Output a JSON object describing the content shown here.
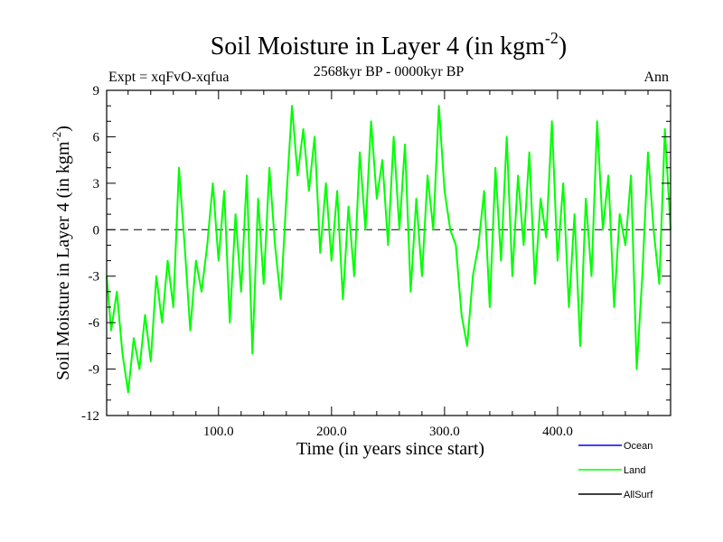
{
  "chart_data": {
    "type": "line",
    "title": "Soil Moisture in Layer 4 (in kgm",
    "title_sup": "-2",
    "title_close": ")",
    "subtitle": "2568kyr BP - 0000kyr BP",
    "expt_label": "Expt = xqFvO-xqfua",
    "season_label": "Ann",
    "ylabel": "Soil Moisture in Layer 4 (in kgm",
    "ylabel_sup": "-2",
    "ylabel_close": ")",
    "xlabel": "Time (in years since start)",
    "xlim": [
      1,
      500
    ],
    "ylim": [
      -12,
      9
    ],
    "x_ticks": [
      {
        "value": 100,
        "label": "100.0"
      },
      {
        "value": 200,
        "label": "200.0"
      },
      {
        "value": 300,
        "label": "300.0"
      },
      {
        "value": 400,
        "label": "400.0"
      }
    ],
    "y_ticks": [
      {
        "value": 9,
        "label": "9"
      },
      {
        "value": 6,
        "label": "6"
      },
      {
        "value": 3,
        "label": "3"
      },
      {
        "value": 0,
        "label": "0"
      },
      {
        "value": -3,
        "label": "-3"
      },
      {
        "value": -6,
        "label": "-6"
      },
      {
        "value": -9,
        "label": "-9"
      },
      {
        "value": -12,
        "label": "-12"
      }
    ],
    "zero_line": 0,
    "legend": [
      {
        "name": "Ocean",
        "color": "#0000ff"
      },
      {
        "name": "Land",
        "color": "#00ff00"
      },
      {
        "name": "AllSurf",
        "color": "#000000"
      }
    ],
    "series": [
      {
        "name": "Land",
        "color": "#00ff00",
        "x": [
          1,
          5,
          10,
          15,
          20,
          25,
          30,
          35,
          40,
          45,
          50,
          55,
          60,
          65,
          70,
          75,
          80,
          85,
          90,
          95,
          100,
          105,
          110,
          115,
          120,
          125,
          130,
          135,
          140,
          145,
          150,
          155,
          160,
          165,
          170,
          175,
          180,
          185,
          190,
          195,
          200,
          205,
          210,
          215,
          220,
          225,
          230,
          235,
          240,
          245,
          250,
          255,
          260,
          265,
          270,
          275,
          280,
          285,
          290,
          295,
          300,
          305,
          310,
          315,
          320,
          325,
          330,
          335,
          340,
          345,
          350,
          355,
          360,
          365,
          370,
          375,
          380,
          385,
          390,
          395,
          400,
          405,
          410,
          415,
          420,
          425,
          430,
          435,
          440,
          445,
          450,
          455,
          460,
          465,
          470,
          475,
          480,
          485,
          490,
          495,
          500
        ],
        "y": [
          -3,
          -6.5,
          -4,
          -8,
          -10.5,
          -7,
          -9,
          -5.5,
          -8.5,
          -3,
          -6,
          -2,
          -5,
          4,
          -1,
          -6.5,
          -2,
          -4,
          -1,
          3,
          -2,
          2.5,
          -6,
          1,
          -4,
          3.5,
          -8,
          2,
          -3.5,
          4,
          -1,
          -4.5,
          2,
          8,
          3.5,
          6.5,
          2.5,
          6,
          -1.5,
          3,
          -2,
          2.5,
          -4.5,
          1.5,
          -3,
          5,
          0,
          7,
          2,
          4.5,
          -1,
          6,
          0,
          5.5,
          -4,
          2,
          -3,
          3.5,
          0,
          8,
          2.5,
          0,
          -1,
          -5.5,
          -7.5,
          -3,
          -1,
          2.5,
          -5,
          4,
          -2,
          6,
          -3,
          3.5,
          -1,
          5,
          -3.5,
          2,
          -0.5,
          7,
          -2,
          3,
          -5,
          1,
          -7.5,
          2,
          -3,
          7,
          0,
          3.5,
          -5,
          1,
          -1,
          3.5,
          -9,
          -3,
          5,
          0,
          -3.5,
          6.5,
          0
        ]
      }
    ]
  }
}
